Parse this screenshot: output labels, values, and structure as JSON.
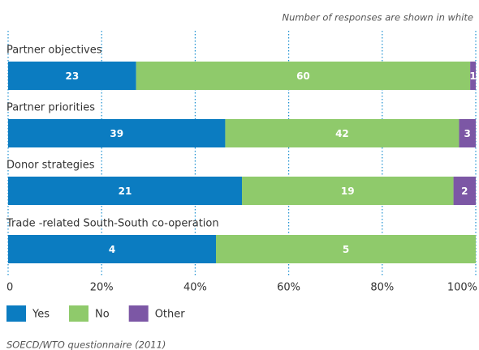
{
  "chart_data": {
    "type": "stacked_bar_100",
    "subtitle": "Number of responses are shown in white",
    "source": "SOECD/WTO questionnaire (2011)",
    "categories": [
      "Partner objectives",
      "Partner priorities",
      "Donor strategies",
      "Trade -related South-South co-operation"
    ],
    "series": [
      {
        "name": "Yes",
        "color": "#0b7cc1",
        "values": [
          23,
          39,
          21,
          4
        ]
      },
      {
        "name": "No",
        "color": "#8fca6b",
        "values": [
          60,
          42,
          19,
          5
        ]
      },
      {
        "name": "Other",
        "color": "#7c57a5",
        "values": [
          1,
          3,
          2,
          null
        ]
      }
    ],
    "xlim": [
      0,
      100
    ],
    "xticks": [
      0,
      {
        "value": 20,
        "label": "20%"
      },
      {
        "value": 40,
        "label": "40%"
      },
      {
        "value": 60,
        "label": "60%"
      },
      {
        "value": 80,
        "label": "80%"
      },
      {
        "value": 100,
        "label": "100%"
      }
    ],
    "grid": true
  }
}
